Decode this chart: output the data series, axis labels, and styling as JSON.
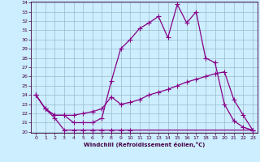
{
  "xlabel": "Windchill (Refroidissement éolien,°C)",
  "ylim": [
    20,
    34
  ],
  "xlim": [
    -0.5,
    23.5
  ],
  "yticks": [
    20,
    21,
    22,
    23,
    24,
    25,
    26,
    27,
    28,
    29,
    30,
    31,
    32,
    33,
    34
  ],
  "xticks": [
    0,
    1,
    2,
    3,
    4,
    5,
    6,
    7,
    8,
    9,
    10,
    11,
    12,
    13,
    14,
    15,
    16,
    17,
    18,
    19,
    20,
    21,
    22,
    23
  ],
  "line_color": "#880088",
  "bg_color": "#cceeff",
  "grid_color": "#99bbcc",
  "markersize": 4,
  "linewidth": 0.9,
  "curve1_x": [
    0,
    1,
    2,
    3,
    4,
    5,
    6,
    7,
    8,
    9,
    10,
    23
  ],
  "curve1_y": [
    24.0,
    22.5,
    21.5,
    20.2,
    20.2,
    20.2,
    20.2,
    20.2,
    20.2,
    20.2,
    20.2,
    20.2
  ],
  "curve2_x": [
    0,
    1,
    2,
    3,
    4,
    5,
    6,
    7,
    8,
    9,
    10,
    11,
    12,
    13,
    14,
    15,
    16,
    17,
    18,
    19,
    20,
    21,
    22,
    23
  ],
  "curve2_y": [
    24.0,
    22.5,
    21.8,
    21.8,
    21.8,
    22.0,
    22.2,
    22.5,
    23.8,
    23.0,
    23.2,
    23.5,
    24.0,
    24.3,
    24.6,
    25.0,
    25.4,
    25.7,
    26.0,
    26.3,
    26.5,
    23.5,
    21.8,
    20.2
  ],
  "curve3_x": [
    0,
    1,
    2,
    3,
    4,
    5,
    6,
    7,
    8,
    9,
    10,
    11,
    12,
    13,
    14,
    15,
    16,
    17,
    18,
    19,
    20,
    21,
    22,
    23
  ],
  "curve3_y": [
    24.0,
    22.5,
    21.8,
    21.8,
    21.0,
    21.0,
    21.0,
    21.5,
    25.5,
    29.0,
    30.0,
    31.2,
    31.8,
    32.5,
    30.2,
    33.8,
    31.8,
    33.0,
    28.0,
    27.5,
    23.0,
    21.2,
    20.5,
    20.2
  ]
}
